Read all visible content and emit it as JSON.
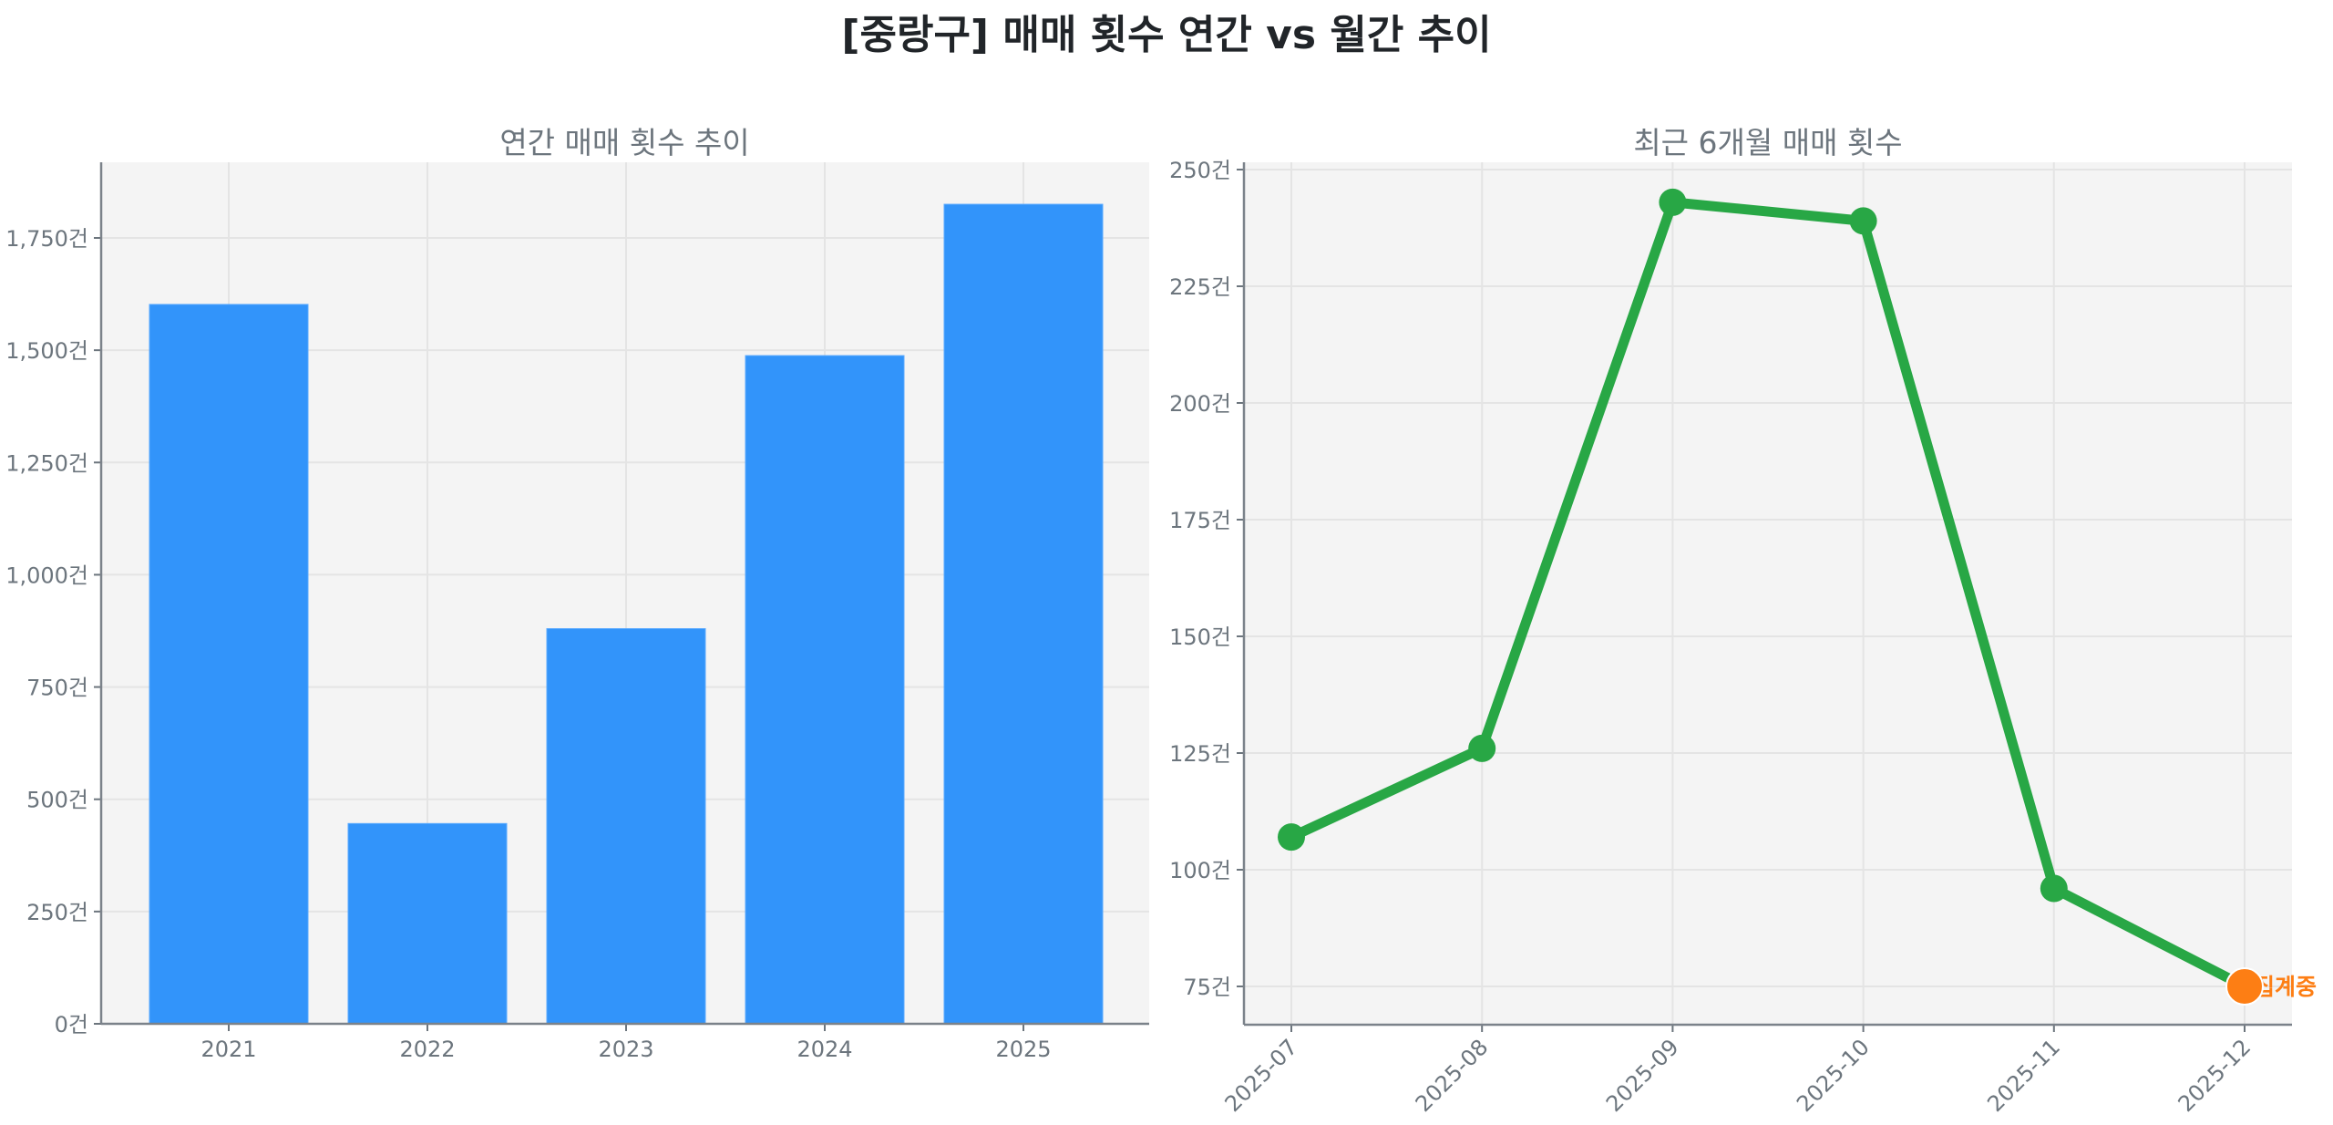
{
  "suptitle": "[중랑구] 매매 횟수 연간 vs 월간 추이",
  "chart_data": [
    {
      "type": "bar",
      "title": "연간 매매 횟수 추이",
      "xlabel": "",
      "ylabel": "",
      "categories": [
        "2021",
        "2022",
        "2023",
        "2024",
        "2025"
      ],
      "values": [
        1602,
        446,
        880,
        1488,
        1825
      ],
      "ylim": [
        0,
        1920
      ],
      "yticks": [
        0,
        250,
        500,
        750,
        1000,
        1250,
        1500,
        1750
      ],
      "ytick_labels": [
        "0건",
        "250건",
        "500건",
        "750건",
        "1,000건",
        "1,250건",
        "1,500건",
        "1,750건"
      ],
      "grid": true,
      "color": "#3294fa"
    },
    {
      "type": "line",
      "title": "최근 6개월 매매 횟수",
      "xlabel": "",
      "ylabel": "",
      "x": [
        "2025-07",
        "2025-08",
        "2025-09",
        "2025-10",
        "2025-11",
        "2025-12"
      ],
      "values": [
        107,
        126,
        243,
        239,
        96,
        75
      ],
      "ylim": [
        67,
        251
      ],
      "yticks": [
        75,
        100,
        125,
        150,
        175,
        200,
        225,
        250
      ],
      "ytick_labels": [
        "75건",
        "100건",
        "125건",
        "150건",
        "175건",
        "200건",
        "225건",
        "250건"
      ],
      "grid": true,
      "line_color": "#28a745",
      "highlight": {
        "x": "2025-12",
        "value": 75,
        "color": "#fd7e14",
        "label": "집계중"
      }
    }
  ]
}
